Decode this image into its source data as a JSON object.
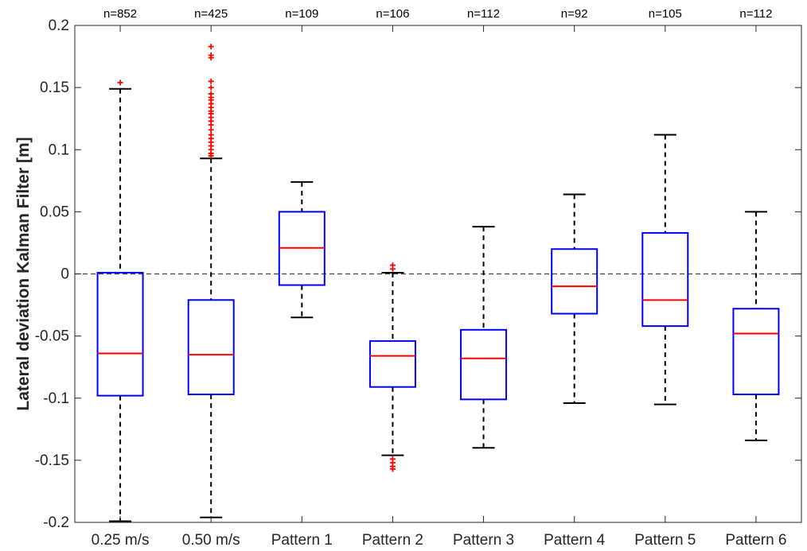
{
  "chart_data": {
    "type": "boxplot",
    "title": "",
    "xlabel": "",
    "ylabel": "Lateral deviation Kalman Filter [m]",
    "ylim": [
      -0.2,
      0.2
    ],
    "yticks": [
      -0.2,
      -0.15,
      -0.1,
      -0.05,
      0,
      0.05,
      0.1,
      0.15,
      0.2
    ],
    "ytick_labels": [
      "-0.2",
      "-0.15",
      "-0.1",
      "-0.05",
      "0",
      "0.05",
      "0.1",
      "0.15",
      "0.2"
    ],
    "reference_line": {
      "y": 0,
      "style": "dashed"
    },
    "grid": false,
    "categories": [
      "0.25 m/s",
      "0.50 m/s",
      "Pattern 1",
      "Pattern 2",
      "Pattern 3",
      "Pattern 4",
      "Pattern 5",
      "Pattern 6"
    ],
    "counts": [
      "n=852",
      "n=425",
      "n=109",
      "n=106",
      "n=112",
      "n=92",
      "n=105",
      "n=112"
    ],
    "boxes": [
      {
        "whisker_low": -0.199,
        "q1": -0.098,
        "median": -0.064,
        "q3": 0.001,
        "whisker_high": 0.149,
        "outliers": [
          0.154
        ]
      },
      {
        "whisker_low": -0.196,
        "q1": -0.097,
        "median": -0.065,
        "q3": -0.021,
        "whisker_high": 0.093,
        "outliers": [
          0.095,
          0.097,
          0.1,
          0.103,
          0.106,
          0.109,
          0.112,
          0.116,
          0.12,
          0.123,
          0.126,
          0.129,
          0.131,
          0.134,
          0.137,
          0.14,
          0.142,
          0.145,
          0.15,
          0.155,
          0.174,
          0.176,
          0.183
        ]
      },
      {
        "whisker_low": -0.035,
        "q1": -0.009,
        "median": 0.021,
        "q3": 0.05,
        "whisker_high": 0.074,
        "outliers": []
      },
      {
        "whisker_low": -0.146,
        "q1": -0.091,
        "median": -0.066,
        "q3": -0.054,
        "whisker_high": 0.001,
        "outliers": [
          0.004,
          0.007,
          -0.149,
          -0.152,
          -0.155,
          -0.157
        ]
      },
      {
        "whisker_low": -0.14,
        "q1": -0.101,
        "median": -0.068,
        "q3": -0.045,
        "whisker_high": 0.038,
        "outliers": []
      },
      {
        "whisker_low": -0.104,
        "q1": -0.032,
        "median": -0.01,
        "q3": 0.02,
        "whisker_high": 0.064,
        "outliers": []
      },
      {
        "whisker_low": -0.105,
        "q1": -0.042,
        "median": -0.021,
        "q3": 0.033,
        "whisker_high": 0.112,
        "outliers": []
      },
      {
        "whisker_low": -0.134,
        "q1": -0.097,
        "median": -0.048,
        "q3": -0.028,
        "whisker_high": 0.05,
        "outliers": []
      }
    ],
    "colors": {
      "box": "#0000ff",
      "median": "#ff0000",
      "whisker": "#000000",
      "outlier": "#ff0000",
      "axis": "#262626",
      "reference": "#404040"
    }
  }
}
